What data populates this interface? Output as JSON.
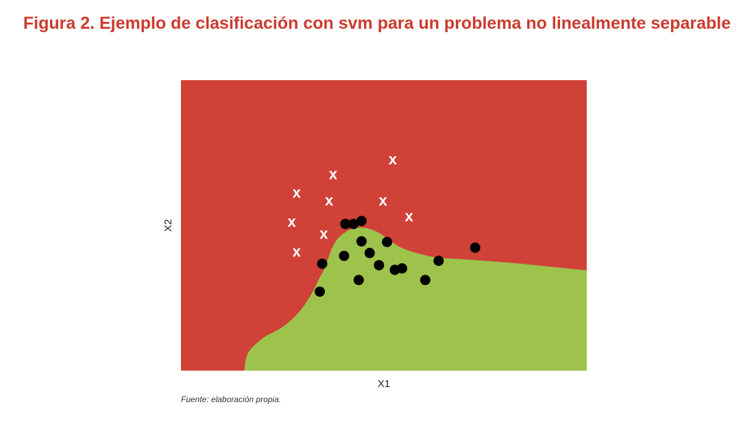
{
  "figure": {
    "title": "Figura 2. Ejemplo de clasificación con svm para un problema no linealmente separable",
    "source_note": "Fuente: elaboración propia."
  },
  "colors": {
    "title": "#cc3a2e",
    "region_negative": "#d04138",
    "region_positive": "#9dc34d",
    "point_dot": "#000000",
    "point_x": "#ffffff"
  },
  "chart_data": {
    "type": "scatter",
    "title": "",
    "xlabel": "X1",
    "ylabel": "X2",
    "xlim": [
      0,
      100
    ],
    "ylim": [
      0,
      100
    ],
    "grid": false,
    "legend": "none",
    "decision_regions": {
      "background_class": "x",
      "region_class": "dot",
      "boundary": [
        [
          15.6,
          0
        ],
        [
          16.5,
          6
        ],
        [
          20,
          11
        ],
        [
          25,
          15
        ],
        [
          29,
          20
        ],
        [
          32,
          26
        ],
        [
          34,
          31.5
        ],
        [
          35.5,
          35.5
        ],
        [
          36.5,
          39.5
        ],
        [
          37.5,
          43
        ],
        [
          39,
          46
        ],
        [
          42,
          48.8
        ],
        [
          45,
          49.2
        ],
        [
          48,
          48
        ],
        [
          51,
          45.3
        ],
        [
          54,
          42.5
        ],
        [
          58,
          40.5
        ],
        [
          63,
          39
        ],
        [
          70,
          38.3
        ],
        [
          78,
          37.5
        ],
        [
          86,
          36.5
        ],
        [
          93,
          35.5
        ],
        [
          100,
          34.5
        ],
        [
          100,
          0
        ]
      ]
    },
    "series": [
      {
        "marker": "dot",
        "points": [
          [
            40.5,
            50.5
          ],
          [
            42.5,
            50.5
          ],
          [
            44.5,
            51.5
          ],
          [
            44.5,
            44.5
          ],
          [
            50.8,
            44.3
          ],
          [
            46.5,
            40.5
          ],
          [
            40.2,
            39.5
          ],
          [
            72.5,
            42.3
          ],
          [
            34.8,
            36.8
          ],
          [
            54.5,
            35.2
          ],
          [
            63.5,
            37.8
          ],
          [
            48.8,
            36.3
          ],
          [
            52.7,
            34.7
          ],
          [
            43.8,
            31.2
          ],
          [
            60.2,
            31.2
          ],
          [
            34.2,
            27.2
          ]
        ]
      },
      {
        "marker": "x",
        "points": [
          [
            52.2,
            72.8
          ],
          [
            37.5,
            67.7
          ],
          [
            28.5,
            61.3
          ],
          [
            36.5,
            58.6
          ],
          [
            49.8,
            58.6
          ],
          [
            56.2,
            53.2
          ],
          [
            27.3,
            51.3
          ],
          [
            35.2,
            47.2
          ],
          [
            28.5,
            41.0
          ]
        ]
      }
    ]
  }
}
